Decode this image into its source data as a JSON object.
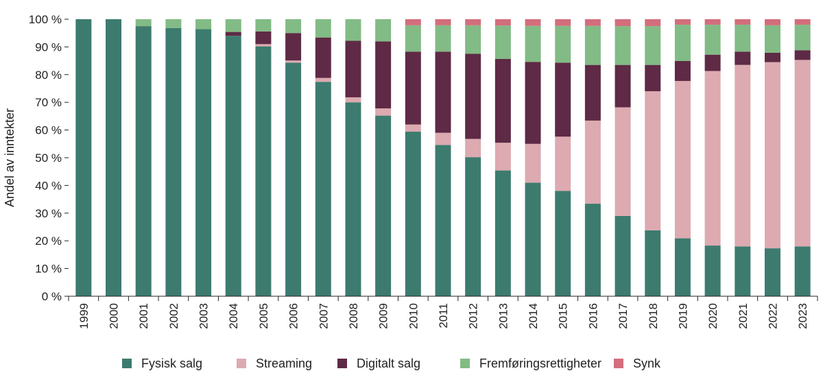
{
  "chart_data": {
    "type": "bar",
    "stacked": true,
    "title": "",
    "xlabel": "",
    "ylabel": "Andel av inntekter",
    "ylim": [
      0,
      100
    ],
    "yticks": [
      0,
      10,
      20,
      30,
      40,
      50,
      60,
      70,
      80,
      90,
      100
    ],
    "ytick_labels": [
      "0 %",
      "10 %",
      "20 %",
      "30 %",
      "40 %",
      "50 %",
      "60 %",
      "70 %",
      "80 %",
      "90 %",
      "100 %"
    ],
    "categories": [
      "1999",
      "2000",
      "2001",
      "2002",
      "2003",
      "2004",
      "2005",
      "2006",
      "2007",
      "2008",
      "2009",
      "2010",
      "2011",
      "2012",
      "2013",
      "2014",
      "2015",
      "2016",
      "2017",
      "2018",
      "2019",
      "2020",
      "2021",
      "2022",
      "2023"
    ],
    "series": [
      {
        "name": "Fysisk salg",
        "color": "#3d7b6f",
        "values": [
          100,
          100,
          97.5,
          96.8,
          96.4,
          94,
          90.2,
          84.3,
          77.4,
          70,
          65.2,
          59.4,
          54.6,
          50.2,
          45.4,
          41,
          38,
          33.4,
          29,
          23.8,
          20.9,
          18.3,
          18,
          17.3,
          18
        ]
      },
      {
        "name": "Streaming",
        "color": "#dcaab0",
        "values": [
          0,
          0,
          0,
          0,
          0,
          0,
          0.8,
          0.8,
          1.4,
          1.8,
          2.6,
          2.6,
          4.4,
          6.6,
          10,
          14,
          19.6,
          30,
          39.2,
          50.2,
          56.8,
          63,
          65.5,
          67.2,
          67.3
        ]
      },
      {
        "name": "Digitalt salg",
        "color": "#5e2a45",
        "values": [
          0,
          0,
          0,
          0,
          0,
          1.4,
          4.6,
          9.9,
          14.6,
          20.4,
          24.2,
          26.3,
          29.3,
          30.7,
          30.3,
          29.6,
          26.7,
          20.1,
          15.3,
          9.5,
          7.2,
          5.9,
          4.8,
          3.4,
          3.5
        ]
      },
      {
        "name": "Fremføringsrettigheter",
        "color": "#82bb85",
        "values": [
          0,
          0,
          2.5,
          3.2,
          3.6,
          4.6,
          4.4,
          5,
          6.6,
          7.8,
          8,
          9.5,
          9.5,
          10.3,
          12,
          13,
          13.3,
          14.1,
          14,
          14,
          13.1,
          10.8,
          9.7,
          9.9,
          9.2
        ]
      },
      {
        "name": "Synk",
        "color": "#d36e7c",
        "values": [
          0,
          0,
          0,
          0,
          0,
          0,
          0,
          0,
          0,
          0,
          0,
          2.2,
          2.2,
          2.2,
          2.3,
          2.4,
          2.4,
          2.4,
          2.5,
          2.5,
          2,
          2,
          2,
          2.2,
          2
        ]
      }
    ],
    "legend_position": "bottom",
    "grid": false
  }
}
